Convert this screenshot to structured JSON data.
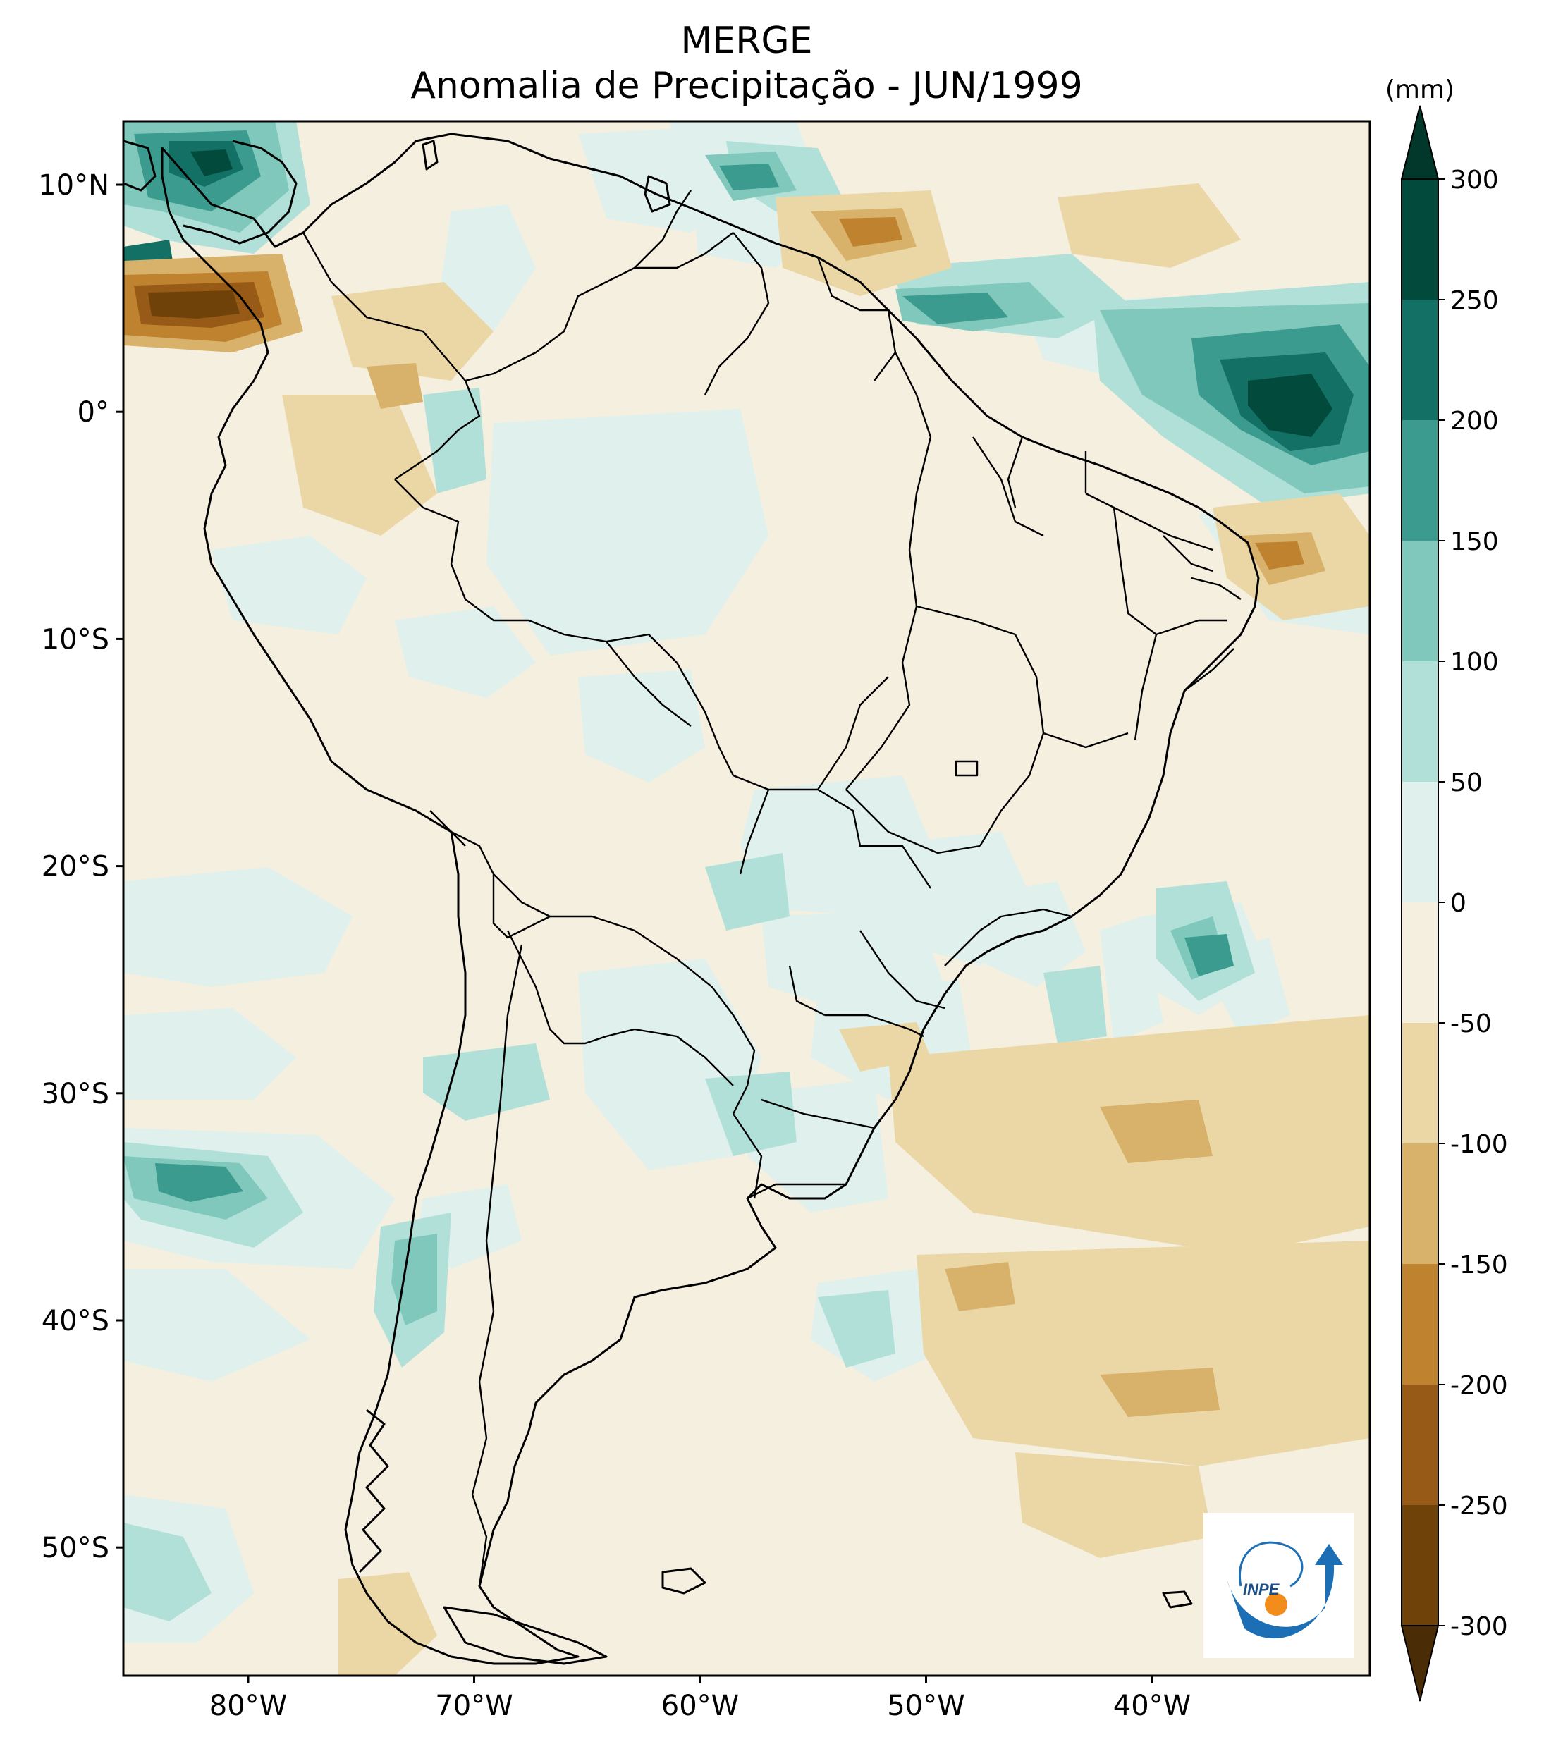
{
  "title": "MERGE",
  "subtitle": "Anomalia de Precipitação - JUN/1999",
  "colorbar": {
    "unit": "(mm)",
    "levels": [
      -300,
      -250,
      -200,
      -150,
      -100,
      -50,
      0,
      50,
      100,
      150,
      200,
      250,
      300
    ],
    "labels": [
      "300",
      "250",
      "200",
      "150",
      "100",
      "50",
      "0",
      "-50",
      "-100",
      "-150",
      "-200",
      "-250",
      "-300"
    ],
    "colors": [
      "#4a2d06",
      "#6f420a",
      "#975a17",
      "#bf832f",
      "#d8b26b",
      "#ebd7a5",
      "#f5efe0",
      "#dff0ed",
      "#b1e0d8",
      "#7fc8bb",
      "#3c9b8f",
      "#137064",
      "#024a3c"
    ]
  },
  "axes": {
    "lat_labels": [
      "10°N",
      "0°",
      "10°S",
      "20°S",
      "30°S",
      "40°S",
      "50°S"
    ],
    "lon_labels": [
      "80°W",
      "70°W",
      "60°W",
      "50°W",
      "40°W"
    ]
  },
  "logo": {
    "text": "INPE"
  }
}
